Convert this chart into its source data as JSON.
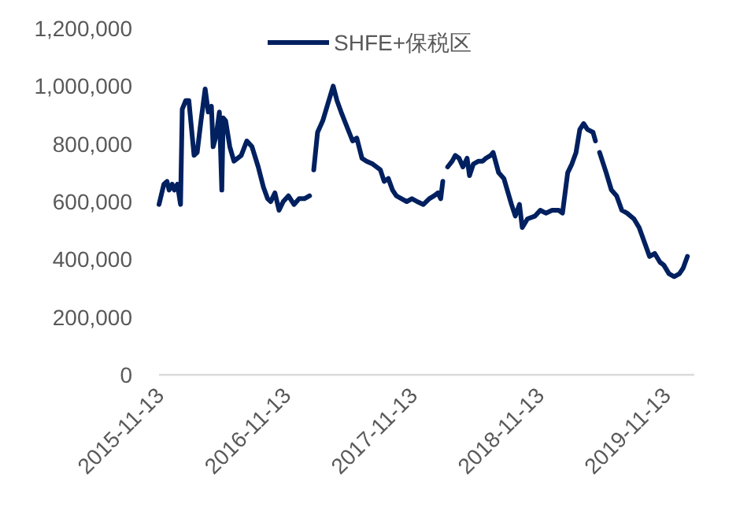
{
  "chart_data": {
    "type": "line",
    "legend": "top",
    "grid": false,
    "xlim": [
      "2015-11-13",
      "2020-02-03"
    ],
    "xticks": [
      {
        "value": "2015-11-13",
        "label": "2015-11-13"
      },
      {
        "value": "2016-11-13",
        "label": "2016-11-13"
      },
      {
        "value": "2017-11-13",
        "label": "2017-11-13"
      },
      {
        "value": "2018-11-13",
        "label": "2018-11-13"
      },
      {
        "value": "2019-11-13",
        "label": "2019-11-13"
      }
    ],
    "ylim": [
      0,
      1200000
    ],
    "yticks": [
      {
        "value": 0,
        "label": "0"
      },
      {
        "value": 200000,
        "label": "200,000"
      },
      {
        "value": 400000,
        "label": "400,000"
      },
      {
        "value": 600000,
        "label": "600,000"
      },
      {
        "value": 800000,
        "label": "800,000"
      },
      {
        "value": 1000000,
        "label": "1,000,000"
      },
      {
        "value": 1200000,
        "label": "1,200,000"
      }
    ],
    "series": [
      {
        "name": "SHFE+保税区",
        "color": "#002060",
        "x": [
          "2015-11-13",
          "2015-11-27",
          "2015-12-06",
          "2015-12-12",
          "2015-12-21",
          "2015-12-27",
          "2016-01-05",
          "2016-01-14",
          "2016-01-19",
          "2016-01-29",
          "2016-02-07",
          "2016-02-22",
          "2016-03-02",
          "2016-03-13",
          "2016-03-25",
          "2016-04-03",
          "2016-04-12",
          "2016-04-17",
          "2016-04-26",
          "2016-05-05",
          "2016-05-12",
          "2016-05-16",
          "2016-05-23",
          "2016-06-04",
          "2016-06-16",
          "2016-07-07",
          "2016-07-23",
          "2016-08-07",
          "2016-08-25",
          "2016-09-09",
          "2016-09-21",
          "2016-09-30",
          "2016-10-12",
          "2016-10-24",
          "2016-11-05",
          "2016-11-20",
          "2016-12-06",
          "2016-12-21",
          "2017-01-05",
          "2017-01-20",
          "2017-01-26",
          "2017-02-01",
          "2017-02-12",
          "2017-02-27",
          "2017-03-14",
          "2017-03-29",
          "2017-04-09",
          "2017-04-21",
          "2017-05-14",
          "2017-05-24",
          "2017-06-05",
          "2017-06-20",
          "2017-07-03",
          "2017-07-21",
          "2017-08-12",
          "2017-08-23",
          "2017-09-04",
          "2017-09-16",
          "2017-09-27",
          "2017-10-12",
          "2017-10-27",
          "2017-11-11",
          "2017-11-26",
          "2017-12-14",
          "2017-12-31",
          "2018-01-14",
          "2018-01-25",
          "2018-02-02",
          "2018-02-08",
          "2018-02-15",
          "2018-02-22",
          "2018-03-07",
          "2018-03-16",
          "2018-03-27",
          "2018-04-07",
          "2018-04-19",
          "2018-04-26",
          "2018-05-07",
          "2018-05-22",
          "2018-06-03",
          "2018-06-12",
          "2018-06-26",
          "2018-07-03",
          "2018-07-19",
          "2018-08-03",
          "2018-08-25",
          "2018-09-05",
          "2018-09-17",
          "2018-09-25",
          "2018-10-10",
          "2018-11-01",
          "2018-11-16",
          "2018-12-02",
          "2018-12-20",
          "2019-01-08",
          "2019-01-19",
          "2019-02-03",
          "2019-02-15",
          "2019-02-27",
          "2019-03-10",
          "2019-03-21",
          "2019-04-01",
          "2019-04-17",
          "2019-04-24",
          "2019-04-30",
          "2019-05-06",
          "2019-05-25",
          "2019-06-09",
          "2019-06-24",
          "2019-07-09",
          "2019-07-24",
          "2019-08-13",
          "2019-08-28",
          "2019-09-15",
          "2019-09-27",
          "2019-10-12",
          "2019-10-27",
          "2019-11-07",
          "2019-11-22",
          "2019-12-07",
          "2019-12-22",
          "2020-01-02",
          "2020-01-14"
        ],
        "values": [
          590000,
          660000,
          670000,
          640000,
          660000,
          640000,
          660000,
          590000,
          920000,
          950000,
          950000,
          760000,
          770000,
          880000,
          990000,
          910000,
          930000,
          790000,
          830000,
          910000,
          640000,
          890000,
          880000,
          790000,
          740000,
          760000,
          810000,
          790000,
          720000,
          650000,
          610000,
          600000,
          630000,
          570000,
          600000,
          620000,
          590000,
          610000,
          610000,
          620000,
          null,
          710000,
          840000,
          880000,
          940000,
          1000000,
          950000,
          910000,
          840000,
          810000,
          820000,
          750000,
          740000,
          730000,
          710000,
          670000,
          680000,
          640000,
          620000,
          610000,
          600000,
          610000,
          600000,
          590000,
          610000,
          620000,
          630000,
          610000,
          670000,
          null,
          720000,
          740000,
          760000,
          750000,
          720000,
          750000,
          690000,
          730000,
          740000,
          740000,
          750000,
          760000,
          770000,
          700000,
          680000,
          590000,
          550000,
          590000,
          510000,
          540000,
          550000,
          570000,
          560000,
          570000,
          570000,
          560000,
          700000,
          730000,
          770000,
          850000,
          870000,
          850000,
          840000,
          810000,
          null,
          770000,
          700000,
          640000,
          620000,
          570000,
          560000,
          540000,
          510000,
          450000,
          410000,
          420000,
          390000,
          380000,
          350000,
          340000,
          350000,
          370000,
          410000
        ]
      }
    ]
  }
}
